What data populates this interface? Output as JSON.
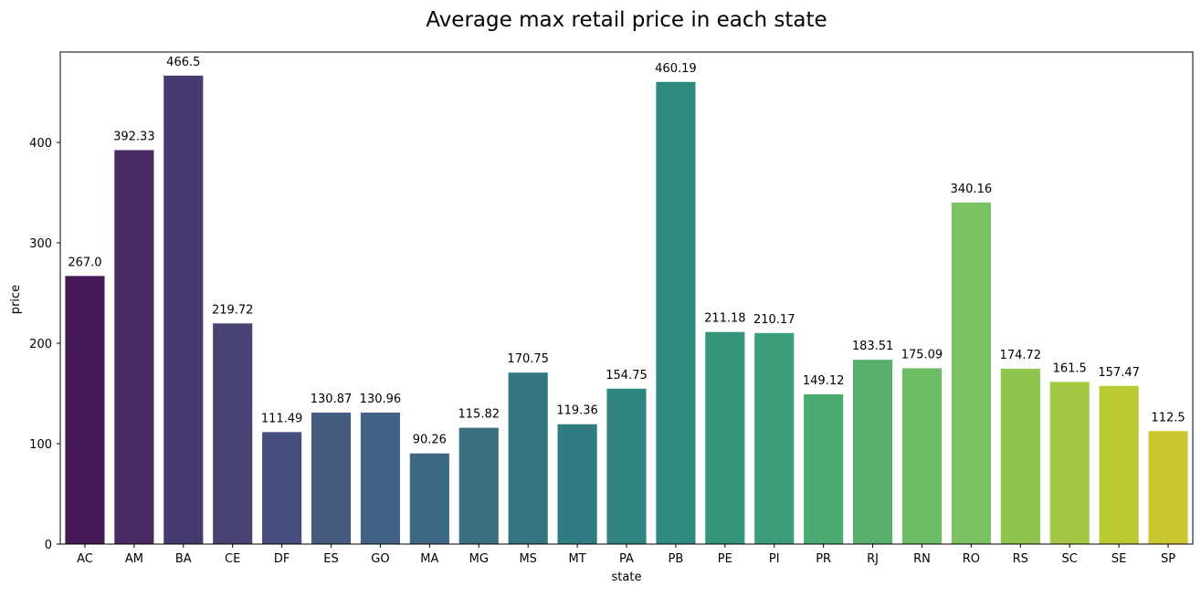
{
  "chart_data": {
    "type": "bar",
    "title": "Average max retail price in each state",
    "xlabel": "state",
    "ylabel": "price",
    "ylim": [
      0,
      490
    ],
    "yticks": [
      0,
      100,
      200,
      300,
      400
    ],
    "grid": false,
    "legend": "none",
    "categories": [
      "AC",
      "AM",
      "BA",
      "CE",
      "DF",
      "ES",
      "GO",
      "MA",
      "MG",
      "MS",
      "MT",
      "PA",
      "PB",
      "PE",
      "PI",
      "PR",
      "RJ",
      "RN",
      "RO",
      "RS",
      "SC",
      "SE",
      "SP"
    ],
    "values": [
      267.0,
      392.33,
      466.5,
      219.72,
      111.49,
      130.87,
      130.96,
      90.26,
      115.82,
      170.75,
      119.36,
      154.75,
      460.19,
      211.18,
      210.17,
      149.12,
      183.51,
      175.09,
      340.16,
      174.72,
      161.5,
      157.47,
      112.5
    ],
    "value_labels": [
      "267.0",
      "392.33",
      "466.5",
      "219.72",
      "111.49",
      "130.87",
      "130.96",
      "90.26",
      "115.82",
      "170.75",
      "119.36",
      "154.75",
      "460.19",
      "211.18",
      "210.17",
      "149.12",
      "183.51",
      "175.09",
      "340.16",
      "174.72",
      "161.5",
      "157.47",
      "112.5"
    ],
    "colors": [
      "#461a58",
      "#482a64",
      "#473a70",
      "#474474",
      "#464e7d",
      "#445a7e",
      "#3f6286",
      "#3d6884",
      "#39707e",
      "#347580",
      "#317b82",
      "#2f857e",
      "#2e8b7f",
      "#35957a",
      "#3b9e78",
      "#4aaa72",
      "#57b06e",
      "#6cbd64",
      "#7bc263",
      "#8fc44e",
      "#a2c844",
      "#b8c932",
      "#cbc72e"
    ]
  }
}
